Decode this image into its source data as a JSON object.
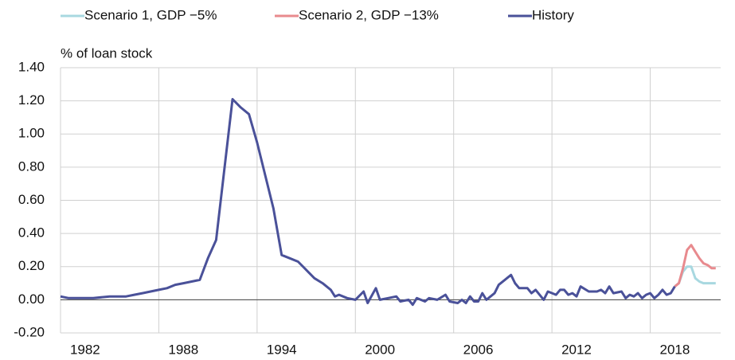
{
  "chart_data": {
    "type": "line",
    "y_label": "%  of loan stock",
    "xlim": [
      1982,
      2022.3
    ],
    "xticks": [
      1982,
      1988,
      1994,
      2000,
      2006,
      2012,
      2018
    ],
    "ylim": [
      -0.2,
      1.4
    ],
    "yticks": [
      {
        "value": -0.2,
        "label": "-0.20"
      },
      {
        "value": 0,
        "label": "0.00"
      },
      {
        "value": 0.2,
        "label": "0.20"
      },
      {
        "value": 0.4,
        "label": "0.40"
      },
      {
        "value": 0.6,
        "label": "0.60"
      },
      {
        "value": 0.8,
        "label": "0.80"
      },
      {
        "value": 1.0,
        "label": "1.00"
      },
      {
        "value": 1.2,
        "label": "1.20"
      },
      {
        "value": 1.4,
        "label": "1.40"
      }
    ],
    "grid": true,
    "series": [
      {
        "name": "Scenario 1, GDP −5%",
        "color": "#a8d8e0",
        "x": [
          2019.5,
          2019.75,
          2020,
          2020.25,
          2020.5,
          2020.75,
          2021,
          2021.25,
          2021.5,
          2022
        ],
        "values": [
          0.08,
          0.1,
          0.17,
          0.2,
          0.2,
          0.13,
          0.11,
          0.1,
          0.1,
          0.1
        ]
      },
      {
        "name": "Scenario 2, GDP −13%",
        "color": "#e88a8e",
        "x": [
          2019.5,
          2019.75,
          2020,
          2020.25,
          2020.5,
          2020.75,
          2021,
          2021.25,
          2021.5,
          2021.75,
          2022
        ],
        "values": [
          0.08,
          0.1,
          0.19,
          0.3,
          0.33,
          0.29,
          0.25,
          0.22,
          0.21,
          0.19,
          0.19
        ]
      },
      {
        "name": "History",
        "color": "#4a5199",
        "x": [
          1982,
          1982.5,
          1983,
          1984,
          1985,
          1986,
          1986.5,
          1987,
          1987.5,
          1988,
          1988.5,
          1989,
          1989.5,
          1990,
          1990.5,
          1991,
          1991.5,
          1992.5,
          1993,
          1993.5,
          1994,
          1995,
          1995.5,
          1996,
          1996.5,
          1997,
          1997.5,
          1998,
          1998.5,
          1998.75,
          1999,
          1999.5,
          2000,
          2000.5,
          2000.75,
          2001.25,
          2001.5,
          2002,
          2002.5,
          2002.75,
          2003.25,
          2003.5,
          2003.75,
          2004.25,
          2004.5,
          2005,
          2005.5,
          2005.75,
          2006.25,
          2006.5,
          2006.75,
          2007,
          2007.25,
          2007.5,
          2007.75,
          2008,
          2008.5,
          2008.75,
          2009.5,
          2009.75,
          2010,
          2010.5,
          2010.75,
          2011,
          2011.5,
          2011.75,
          2012.25,
          2012.5,
          2012.75,
          2013,
          2013.25,
          2013.5,
          2013.75,
          2014.25,
          2014.75,
          2015,
          2015.25,
          2015.5,
          2015.75,
          2016.25,
          2016.5,
          2016.75,
          2017,
          2017.25,
          2017.5,
          2017.75,
          2018,
          2018.25,
          2018.5,
          2018.75,
          2019,
          2019.25,
          2019.5
        ],
        "values": [
          0.02,
          0.01,
          0.01,
          0.01,
          0.02,
          0.02,
          0.03,
          0.04,
          0.05,
          0.06,
          0.07,
          0.09,
          0.1,
          0.11,
          0.12,
          0.25,
          0.36,
          1.21,
          1.16,
          1.12,
          0.95,
          0.55,
          0.27,
          0.25,
          0.23,
          0.18,
          0.13,
          0.1,
          0.06,
          0.02,
          0.03,
          0.01,
          0.0,
          0.05,
          -0.02,
          0.07,
          0.0,
          0.01,
          0.02,
          -0.01,
          0.0,
          -0.03,
          0.01,
          -0.01,
          0.01,
          0.0,
          0.03,
          -0.01,
          -0.02,
          0.0,
          -0.02,
          0.02,
          -0.01,
          -0.01,
          0.04,
          0.0,
          0.04,
          0.09,
          0.15,
          0.1,
          0.07,
          0.07,
          0.04,
          0.06,
          0.0,
          0.05,
          0.03,
          0.06,
          0.06,
          0.03,
          0.04,
          0.02,
          0.08,
          0.05,
          0.05,
          0.06,
          0.04,
          0.08,
          0.04,
          0.05,
          0.01,
          0.03,
          0.02,
          0.04,
          0.01,
          0.03,
          0.04,
          0.01,
          0.03,
          0.06,
          0.03,
          0.04,
          0.08
        ]
      }
    ]
  }
}
